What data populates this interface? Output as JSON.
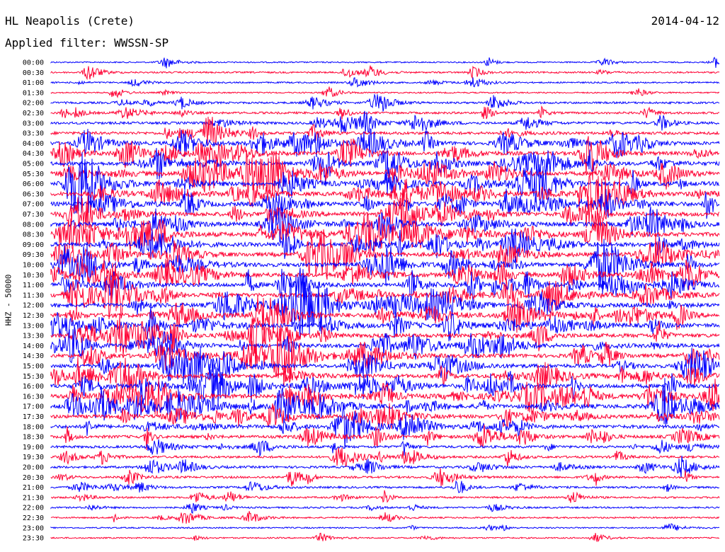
{
  "header": {
    "station": "HL Neapolis (Crete)",
    "date": "2014-04-12",
    "filter": "Applied filter: WWSSN-SP"
  },
  "chart_data": {
    "type": "line",
    "ylabel": "HHZ - 50000",
    "colors": [
      "#0000ff",
      "#ff0033"
    ],
    "rows": [
      {
        "label": "00:00",
        "activity": 0.15
      },
      {
        "label": "00:30",
        "activity": 0.25
      },
      {
        "label": "01:00",
        "activity": 0.2
      },
      {
        "label": "01:30",
        "activity": 0.15
      },
      {
        "label": "02:00",
        "activity": 0.35
      },
      {
        "label": "02:30",
        "activity": 0.4
      },
      {
        "label": "03:00",
        "activity": 0.5
      },
      {
        "label": "03:30",
        "activity": 0.6
      },
      {
        "label": "04:00",
        "activity": 0.8
      },
      {
        "label": "04:30",
        "activity": 0.85
      },
      {
        "label": "05:00",
        "activity": 0.9
      },
      {
        "label": "05:30",
        "activity": 0.95
      },
      {
        "label": "06:00",
        "activity": 1.0
      },
      {
        "label": "06:30",
        "activity": 1.0
      },
      {
        "label": "07:00",
        "activity": 1.0
      },
      {
        "label": "07:30",
        "activity": 1.0
      },
      {
        "label": "08:00",
        "activity": 1.0
      },
      {
        "label": "08:30",
        "activity": 1.0
      },
      {
        "label": "09:00",
        "activity": 1.0
      },
      {
        "label": "09:30",
        "activity": 1.0
      },
      {
        "label": "10:00",
        "activity": 1.0
      },
      {
        "label": "10:30",
        "activity": 1.0
      },
      {
        "label": "11:00",
        "activity": 1.0
      },
      {
        "label": "11:30",
        "activity": 1.0
      },
      {
        "label": "12:00",
        "activity": 1.0
      },
      {
        "label": "12:30",
        "activity": 1.0
      },
      {
        "label": "13:00",
        "activity": 1.0
      },
      {
        "label": "13:30",
        "activity": 0.95
      },
      {
        "label": "14:00",
        "activity": 0.9
      },
      {
        "label": "14:30",
        "activity": 0.9
      },
      {
        "label": "15:00",
        "activity": 0.9
      },
      {
        "label": "15:30",
        "activity": 0.95
      },
      {
        "label": "16:00",
        "activity": 1.0
      },
      {
        "label": "16:30",
        "activity": 1.0
      },
      {
        "label": "17:00",
        "activity": 1.0
      },
      {
        "label": "17:30",
        "activity": 0.85
      },
      {
        "label": "18:00",
        "activity": 0.8
      },
      {
        "label": "18:30",
        "activity": 0.65
      },
      {
        "label": "19:00",
        "activity": 0.5
      },
      {
        "label": "19:30",
        "activity": 0.45
      },
      {
        "label": "20:00",
        "activity": 0.45
      },
      {
        "label": "20:30",
        "activity": 0.4
      },
      {
        "label": "21:00",
        "activity": 0.35
      },
      {
        "label": "21:30",
        "activity": 0.3
      },
      {
        "label": "22:00",
        "activity": 0.25
      },
      {
        "label": "22:30",
        "activity": 0.2
      },
      {
        "label": "23:00",
        "activity": 0.15
      },
      {
        "label": "23:30",
        "activity": 0.15
      }
    ]
  }
}
